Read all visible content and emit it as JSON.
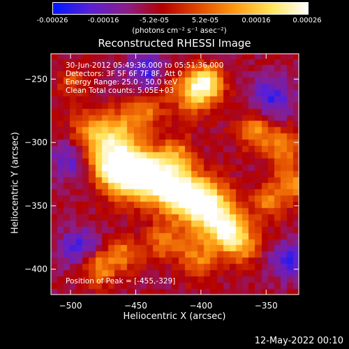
{
  "colorbar": {
    "min_value": -0.00026,
    "max_value": 0.00026,
    "tick_labels": [
      "-0.00026",
      "-0.00016",
      "-5.2e-05",
      "5.2e-05",
      "0.00016",
      "0.00026"
    ],
    "unit_label": "(photons cm⁻² s⁻¹ asec⁻²)",
    "colors": [
      "#0018ff",
      "#5a1fd6",
      "#8a1e8c",
      "#b40000",
      "#e24a00",
      "#ff9a12",
      "#ffe45a",
      "#ffffff"
    ]
  },
  "chart_data": {
    "type": "heatmap",
    "title": "Reconstructed RHESSI Image",
    "xlabel": "Heliocentric X (arcsec)",
    "ylabel": "Heliocentric Y (arcsec)",
    "xlim": [
      -515,
      -325
    ],
    "ylim": [
      -420,
      -230
    ],
    "x_ticks": [
      -500,
      -450,
      -400,
      -350
    ],
    "y_ticks": [
      -400,
      -350,
      -300,
      -250
    ],
    "x_tick_labels": [
      "−500",
      "−450",
      "−400",
      "−350"
    ],
    "y_tick_labels": [
      "−400",
      "−350",
      "−300",
      "−250"
    ],
    "peak_position": [
      -455,
      -329
    ]
  },
  "info": {
    "time_range": "30-Jun-2012 05:49:36.000 to 05:51:36.000",
    "detectors": "Detectors: 3F 5F 6F 7F 8F, Att 0",
    "energy_range": "Energy Range: 25.0 - 50.0 keV",
    "method": "Clean     Total counts: 5.05E+03",
    "peak": "Position of Peak = [-455,-329]"
  },
  "footer": {
    "date": "12-May-2022 00:10"
  }
}
